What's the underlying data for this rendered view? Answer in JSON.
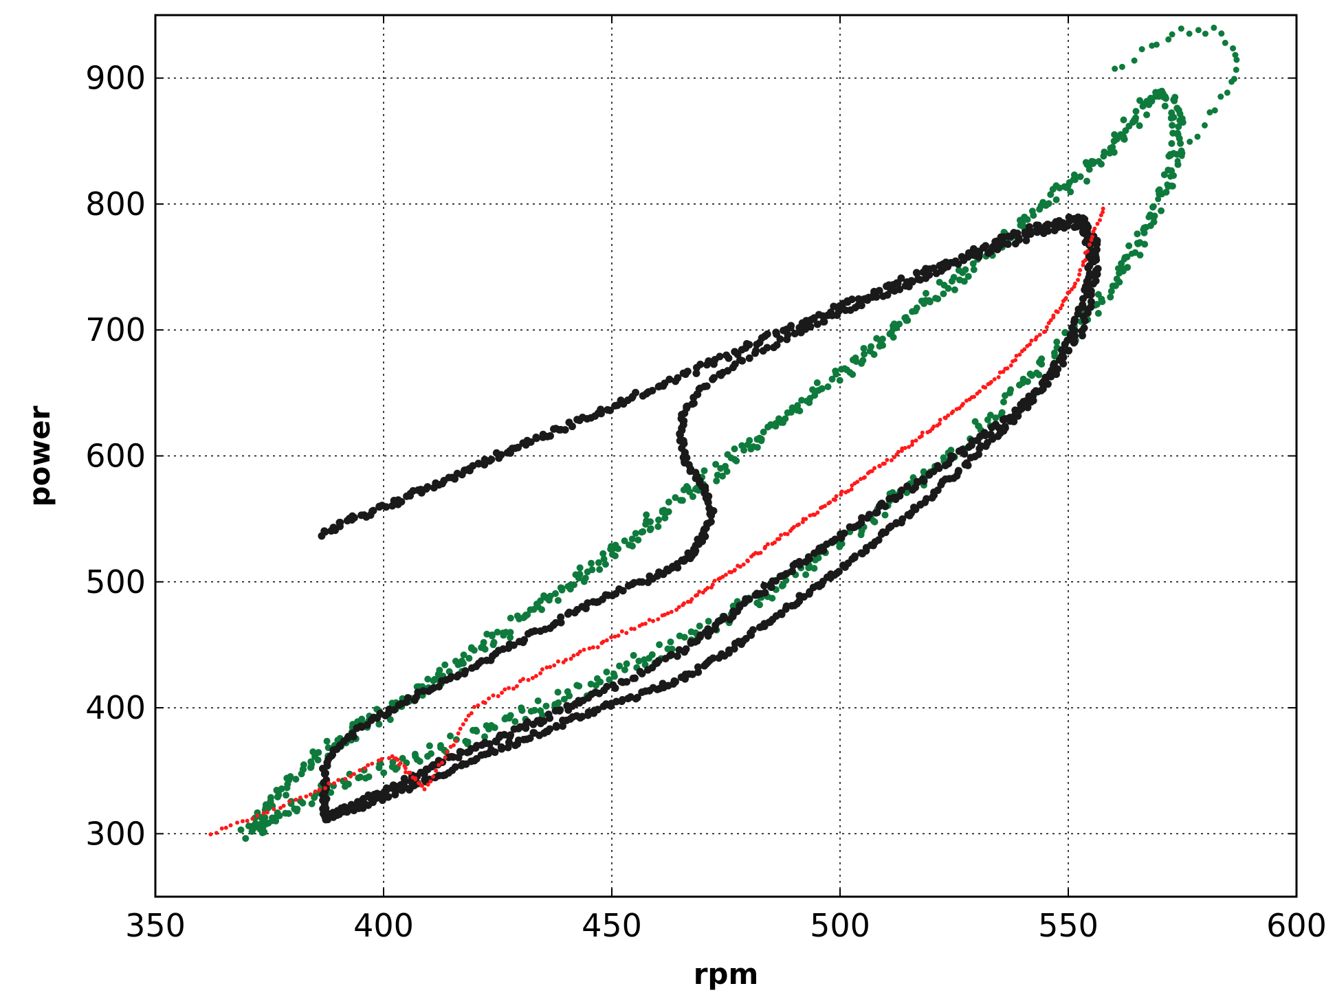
{
  "chart_data": {
    "type": "scatter",
    "title": "",
    "xlabel": "rpm",
    "ylabel": "power",
    "xlim": [
      350,
      600
    ],
    "ylim": [
      250,
      950
    ],
    "xticks": [
      350,
      400,
      450,
      500,
      550,
      600
    ],
    "yticks": [
      300,
      400,
      500,
      600,
      700,
      800,
      900
    ],
    "grid": true,
    "legend": "none",
    "series": [
      {
        "color": "#0e7a3c",
        "marker": "dot",
        "description_free_points": true,
        "points": [
          [
            370,
            298
          ],
          [
            373,
            315
          ],
          [
            376,
            330
          ],
          [
            380,
            345
          ],
          [
            385,
            360
          ],
          [
            390,
            372
          ],
          [
            395,
            383
          ],
          [
            400,
            395
          ],
          [
            405,
            407
          ],
          [
            410,
            420
          ],
          [
            415,
            432
          ],
          [
            420,
            445
          ],
          [
            425,
            457
          ],
          [
            430,
            470
          ],
          [
            435,
            483
          ],
          [
            440,
            497
          ],
          [
            445,
            510
          ],
          [
            450,
            524
          ],
          [
            455,
            538
          ],
          [
            460,
            552
          ],
          [
            465,
            566
          ],
          [
            470,
            580
          ],
          [
            475,
            594
          ],
          [
            480,
            608
          ],
          [
            485,
            622
          ],
          [
            490,
            637
          ],
          [
            495,
            651
          ],
          [
            500,
            666
          ],
          [
            505,
            680
          ],
          [
            510,
            695
          ],
          [
            515,
            710
          ],
          [
            520,
            725
          ],
          [
            525,
            740
          ],
          [
            530,
            755
          ],
          [
            535,
            770
          ],
          [
            540,
            785
          ],
          [
            545,
            800
          ],
          [
            550,
            815
          ],
          [
            555,
            830
          ],
          [
            560,
            845
          ],
          [
            563,
            860
          ],
          [
            566,
            875
          ],
          [
            569,
            886
          ],
          [
            572,
            885
          ],
          [
            574,
            870
          ],
          [
            574,
            850
          ],
          [
            573,
            830
          ],
          [
            570,
            805
          ],
          [
            567,
            780
          ],
          [
            563,
            755
          ],
          [
            559,
            730
          ],
          [
            554,
            710
          ],
          [
            549,
            690
          ],
          [
            543,
            668
          ],
          [
            537,
            645
          ],
          [
            530,
            620
          ],
          [
            523,
            598
          ],
          [
            516,
            577
          ],
          [
            509,
            557
          ],
          [
            502,
            537
          ],
          [
            495,
            518
          ],
          [
            488,
            500
          ],
          [
            480,
            482
          ],
          [
            472,
            466
          ],
          [
            464,
            450
          ],
          [
            456,
            436
          ],
          [
            448,
            422
          ],
          [
            440,
            409
          ],
          [
            432,
            396
          ],
          [
            424,
            384
          ],
          [
            416,
            373
          ],
          [
            408,
            362
          ],
          [
            400,
            352
          ],
          [
            392,
            341
          ],
          [
            384,
            329
          ],
          [
            378,
            318
          ],
          [
            374,
            306
          ],
          [
            372,
            300
          ]
        ],
        "outer_points": [
          [
            560,
            905
          ],
          [
            568,
            925
          ],
          [
            575,
            938
          ],
          [
            582,
            938
          ],
          [
            587,
            920
          ],
          [
            586,
            895
          ],
          [
            581,
            870
          ],
          [
            575,
            840
          ],
          [
            570,
            805
          ],
          [
            565,
            770
          ],
          [
            560,
            740
          ]
        ]
      },
      {
        "color": "#1a1a1a",
        "marker": "dot",
        "points": [
          [
            387,
            312
          ],
          [
            392,
            320
          ],
          [
            398,
            330
          ],
          [
            405,
            343
          ],
          [
            412,
            355
          ],
          [
            420,
            368
          ],
          [
            428,
            380
          ],
          [
            436,
            393
          ],
          [
            445,
            408
          ],
          [
            455,
            425
          ],
          [
            465,
            445
          ],
          [
            472,
            462
          ],
          [
            478,
            480
          ],
          [
            485,
            498
          ],
          [
            492,
            517
          ],
          [
            500,
            537
          ],
          [
            508,
            557
          ],
          [
            516,
            577
          ],
          [
            524,
            597
          ],
          [
            532,
            617
          ],
          [
            540,
            640
          ],
          [
            547,
            665
          ],
          [
            553,
            700
          ],
          [
            556,
            740
          ],
          [
            556,
            770
          ],
          [
            553,
            788
          ],
          [
            546,
            785
          ],
          [
            538,
            775
          ],
          [
            528,
            760
          ],
          [
            518,
            745
          ],
          [
            508,
            730
          ],
          [
            498,
            715
          ],
          [
            488,
            700
          ],
          [
            478,
            684
          ],
          [
            468,
            668
          ],
          [
            458,
            652
          ],
          [
            449,
            637
          ],
          [
            440,
            623
          ],
          [
            432,
            611
          ],
          [
            424,
            598
          ],
          [
            416,
            585
          ],
          [
            408,
            572
          ],
          [
            400,
            560
          ],
          [
            392,
            548
          ],
          [
            386,
            538
          ]
        ],
        "inner_points": [
          [
            387,
            312
          ],
          [
            395,
            322
          ],
          [
            403,
            333
          ],
          [
            411,
            345
          ],
          [
            419,
            357
          ],
          [
            427,
            370
          ],
          [
            434,
            380
          ],
          [
            441,
            390
          ],
          [
            448,
            400
          ],
          [
            456,
            410
          ],
          [
            463,
            420
          ],
          [
            470,
            432
          ],
          [
            476,
            446
          ],
          [
            482,
            462
          ],
          [
            488,
            478
          ],
          [
            494,
            494
          ],
          [
            500,
            510
          ],
          [
            506,
            527
          ],
          [
            512,
            545
          ],
          [
            518,
            563
          ],
          [
            524,
            582
          ],
          [
            530,
            602
          ],
          [
            536,
            622
          ],
          [
            542,
            645
          ],
          [
            547,
            670
          ],
          [
            551,
            700
          ],
          [
            554,
            730
          ],
          [
            555,
            760
          ],
          [
            553,
            785
          ],
          [
            546,
            780
          ],
          [
            538,
            770
          ],
          [
            528,
            756
          ],
          [
            518,
            741
          ],
          [
            508,
            726
          ],
          [
            498,
            710
          ],
          [
            488,
            693
          ],
          [
            478,
            675
          ],
          [
            470,
            655
          ],
          [
            466,
            636
          ],
          [
            465,
            616
          ],
          [
            466,
            596
          ],
          [
            470,
            576
          ],
          [
            472,
            555
          ],
          [
            470,
            537
          ],
          [
            468,
            524
          ],
          [
            465,
            515
          ],
          [
            460,
            505
          ],
          [
            452,
            493
          ],
          [
            444,
            480
          ],
          [
            436,
            465
          ],
          [
            428,
            449
          ],
          [
            420,
            433
          ],
          [
            412,
            418
          ],
          [
            404,
            403
          ],
          [
            396,
            388
          ],
          [
            390,
            370
          ],
          [
            387,
            350
          ],
          [
            387,
            330
          ],
          [
            387,
            312
          ]
        ]
      },
      {
        "color": "#ff1a1a",
        "marker": "small-dot",
        "points": [
          [
            362,
            300
          ],
          [
            383,
            330
          ],
          [
            402,
            362
          ],
          [
            409,
            335
          ],
          [
            420,
            400
          ],
          [
            435,
            430
          ],
          [
            450,
            455
          ],
          [
            465,
            480
          ],
          [
            475,
            505
          ],
          [
            485,
            530
          ],
          [
            495,
            556
          ],
          [
            505,
            582
          ],
          [
            515,
            608
          ],
          [
            525,
            635
          ],
          [
            535,
            665
          ],
          [
            545,
            700
          ],
          [
            552,
            740
          ],
          [
            558,
            800
          ]
        ]
      }
    ]
  }
}
